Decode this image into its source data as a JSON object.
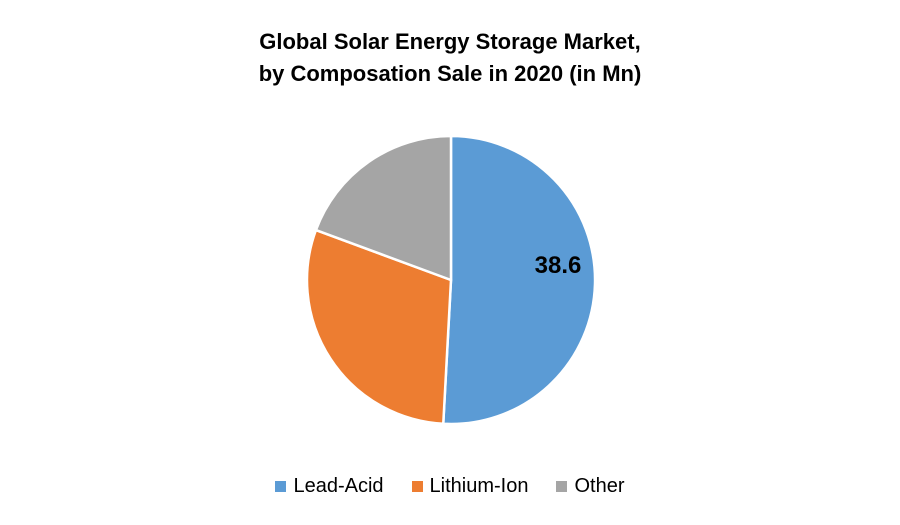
{
  "chart_data": {
    "type": "pie",
    "title": "Global Solar Energy Storage Market, by Composation Sale in 2020 (in Mn)",
    "title_lines": [
      "Global Solar Energy Storage Market,",
      "by Composation Sale in 2020 (in Mn)"
    ],
    "unit": "Mn",
    "year": "2020",
    "categories": [
      "Lead-Acid",
      "Lithium-Ion",
      "Other"
    ],
    "values": [
      38.6,
      22.6,
      14.7
    ],
    "colors": [
      "#5B9BD5",
      "#ED7D31",
      "#A5A5A5"
    ],
    "data_labels": [
      {
        "series_index": 0,
        "text": "38.6"
      }
    ],
    "data_label_color": "#000000",
    "slice_border_color": "#FFFFFF",
    "start_angle_deg": 0,
    "direction": "clockwise",
    "legend_position": "bottom",
    "background_color": "#FFFFFF"
  }
}
